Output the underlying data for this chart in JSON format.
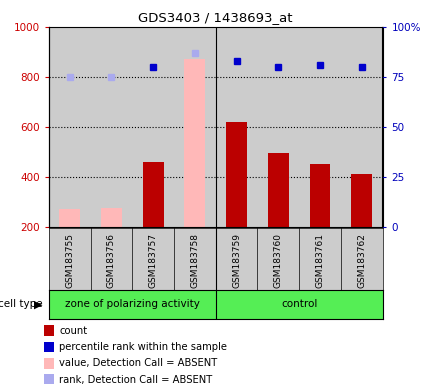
{
  "title": "GDS3403 / 1438693_at",
  "samples": [
    "GSM183755",
    "GSM183756",
    "GSM183757",
    "GSM183758",
    "GSM183759",
    "GSM183760",
    "GSM183761",
    "GSM183762"
  ],
  "group1_label": "zone of polarizing activity",
  "group2_label": "control",
  "cell_type_label": "cell type",
  "count_values": [
    null,
    null,
    460,
    null,
    620,
    495,
    450,
    410
  ],
  "count_absent_values": [
    270,
    275,
    null,
    870,
    null,
    null,
    null,
    null
  ],
  "percentile_values": [
    null,
    null,
    80,
    null,
    83,
    80,
    81,
    80
  ],
  "percentile_absent_values": [
    75,
    75,
    null,
    87,
    null,
    null,
    null,
    null
  ],
  "ylim_left": [
    200,
    1000
  ],
  "ylim_right": [
    0,
    100
  ],
  "yticks_left": [
    200,
    400,
    600,
    800,
    1000
  ],
  "yticks_right": [
    0,
    25,
    50,
    75,
    100
  ],
  "ytick_labels_right": [
    "0",
    "25",
    "50",
    "75",
    "100%"
  ],
  "bar_color_present": "#bb0000",
  "bar_color_absent": "#ffb8b8",
  "dot_color_present": "#0000cc",
  "dot_color_absent": "#aaaaee",
  "left_axis_color": "#cc0000",
  "right_axis_color": "#0000bb",
  "col_bg": "#cccccc",
  "cell_type_bg": "#55ee55",
  "bg_color": "#ffffff",
  "bar_width": 0.5,
  "group_split": 3.5,
  "n_group1": 4,
  "n_group2": 4,
  "legend_items": [
    {
      "color": "#bb0000",
      "label": "count"
    },
    {
      "color": "#0000cc",
      "label": "percentile rank within the sample"
    },
    {
      "color": "#ffb8b8",
      "label": "value, Detection Call = ABSENT"
    },
    {
      "color": "#aaaaee",
      "label": "rank, Detection Call = ABSENT"
    }
  ]
}
